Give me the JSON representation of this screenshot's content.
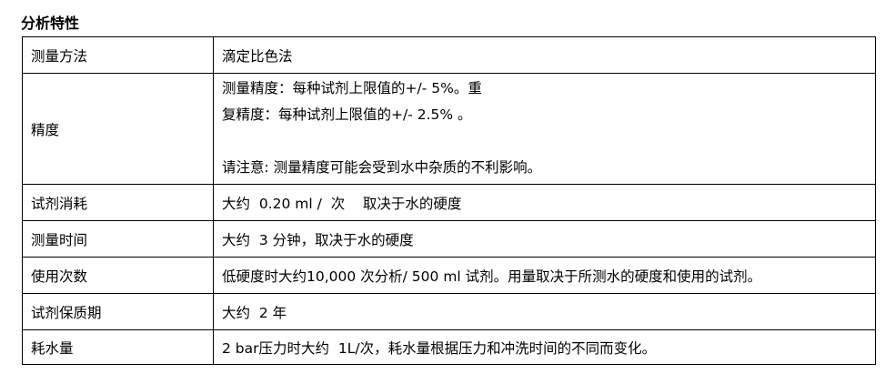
{
  "title": "分析特性",
  "rows": [
    {
      "label": "测量方法",
      "lines": [
        "滴定比色法"
      ]
    },
    {
      "label": "精度",
      "lines": [
        "测量精度：每种试剂上限值的+/-  5%。重",
        "复精度：每种试剂上限值的+/- 2.5% 。",
        "",
        "请注意: 测量精度可能会受到水中杂质的不利影响。"
      ]
    },
    {
      "label": "试剂消耗",
      "lines": [
        "大约  0.20 ml /  次    取决于水的硬度"
      ]
    },
    {
      "label": "测量时间",
      "lines": [
        "大约  3 分钟，取决于水的硬度"
      ]
    },
    {
      "label": "使用次数",
      "lines": [
        "低硬度时大约10,000 次分析/ 500 ml 试剂。用量取决于所测水的硬度和使用的试剂。"
      ]
    },
    {
      "label": "试剂保质期",
      "lines": [
        "大约  2 年"
      ]
    },
    {
      "label": "耗水量",
      "lines": [
        "2 bar压力时大约  1L/次，耗水量根据压力和冲洗时间的不同而变化。"
      ]
    }
  ]
}
